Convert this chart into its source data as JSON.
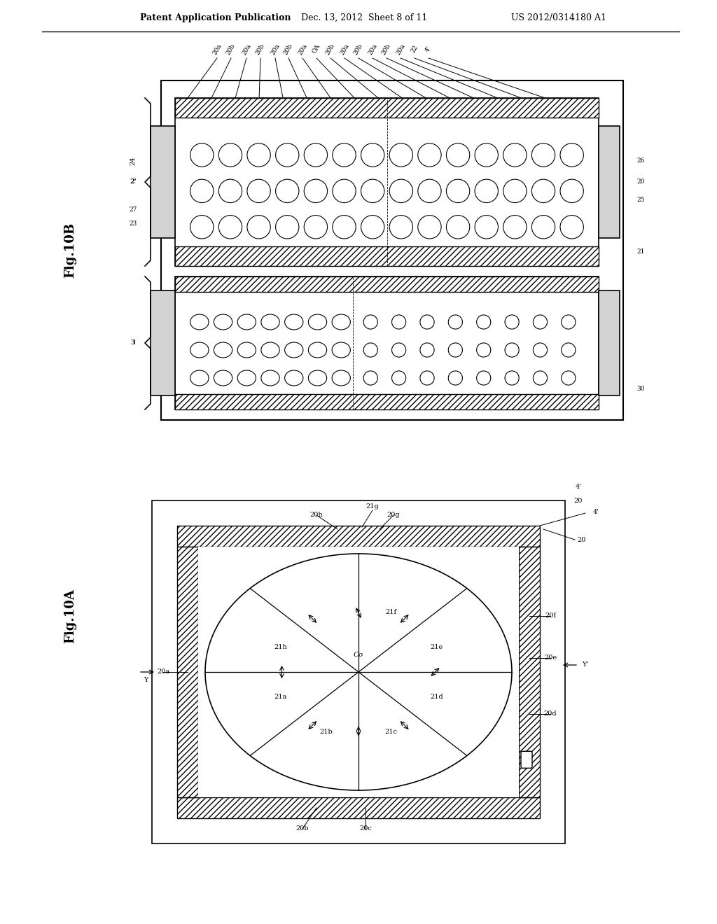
{
  "bg_color": "#ffffff",
  "title_line1": "Patent Application Publication",
  "title_line2": "Dec. 13, 2012  Sheet 8 of 11",
  "title_line3": "US 2012/0314180 A1",
  "fig_label_top": "Fig.10B",
  "fig_label_bottom": "Fig.10A",
  "header_fontsize": 9,
  "label_fontsize": 7.5
}
